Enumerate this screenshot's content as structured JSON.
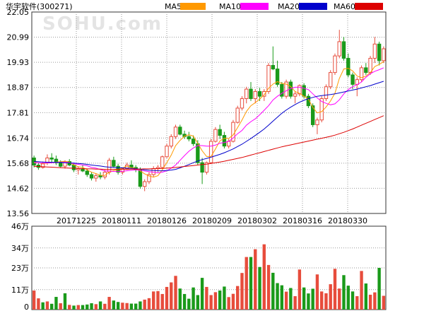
{
  "chart_data": [
    {
      "type": "candlestick",
      "title": "华宇软件(300271)",
      "y_ticks": [
        "22.05",
        "20.99",
        "19.93",
        "18.87",
        "17.81",
        "16.74",
        "15.68",
        "14.62",
        "13.56"
      ],
      "ylim": [
        13.56,
        22.05
      ],
      "x_ticks": [
        "20171225",
        "20180111",
        "20180126",
        "20180209",
        "20180302",
        "20180316",
        "20180330"
      ],
      "grid": true,
      "legend": [
        {
          "name": "MA5",
          "color": "#ff9900"
        },
        {
          "name": "MA10",
          "color": "#ff00ff"
        },
        {
          "name": "MA20",
          "color": "#0000cc"
        },
        {
          "name": "MA60",
          "color": "#dd0000"
        }
      ],
      "up_color": "#e74c3c",
      "down_color": "#1a9a1a",
      "ohlc": [
        [
          15.9,
          16.0,
          15.5,
          15.6
        ],
        [
          15.6,
          15.7,
          15.4,
          15.5
        ],
        [
          15.5,
          15.75,
          15.45,
          15.65
        ],
        [
          15.7,
          16.05,
          15.6,
          15.9
        ],
        [
          15.9,
          16.1,
          15.7,
          15.85
        ],
        [
          15.85,
          16.0,
          15.6,
          15.7
        ],
        [
          15.7,
          15.8,
          15.5,
          15.55
        ],
        [
          15.55,
          15.8,
          15.45,
          15.75
        ],
        [
          15.75,
          15.85,
          15.55,
          15.6
        ],
        [
          15.6,
          15.7,
          15.3,
          15.4
        ],
        [
          15.4,
          15.55,
          15.2,
          15.45
        ],
        [
          15.45,
          15.6,
          15.3,
          15.35
        ],
        [
          15.35,
          15.45,
          15.1,
          15.2
        ],
        [
          15.2,
          15.3,
          14.95,
          15.05
        ],
        [
          15.05,
          15.25,
          14.9,
          15.15
        ],
        [
          15.15,
          15.3,
          15.0,
          15.1
        ],
        [
          15.1,
          15.4,
          15.0,
          15.3
        ],
        [
          15.3,
          15.9,
          15.2,
          15.8
        ],
        [
          15.8,
          15.95,
          15.5,
          15.55
        ],
        [
          15.55,
          15.65,
          15.2,
          15.3
        ],
        [
          15.3,
          15.5,
          15.2,
          15.45
        ],
        [
          15.45,
          15.7,
          15.4,
          15.6
        ],
        [
          15.6,
          15.8,
          15.45,
          15.5
        ],
        [
          15.5,
          15.6,
          15.3,
          15.4
        ],
        [
          15.4,
          15.5,
          14.6,
          14.7
        ],
        [
          14.7,
          15.0,
          14.5,
          14.9
        ],
        [
          14.9,
          15.3,
          14.8,
          15.2
        ],
        [
          15.2,
          15.55,
          15.1,
          15.45
        ],
        [
          15.45,
          15.6,
          15.3,
          15.5
        ],
        [
          15.5,
          16.0,
          15.45,
          15.95
        ],
        [
          15.95,
          16.5,
          15.9,
          16.4
        ],
        [
          16.4,
          16.9,
          16.3,
          16.8
        ],
        [
          16.8,
          17.3,
          16.7,
          17.2
        ],
        [
          17.2,
          17.3,
          16.85,
          16.9
        ],
        [
          16.9,
          17.05,
          16.7,
          16.8
        ],
        [
          16.8,
          17.0,
          16.6,
          16.7
        ],
        [
          16.7,
          16.85,
          16.4,
          16.5
        ],
        [
          16.5,
          16.65,
          15.6,
          15.7
        ],
        [
          15.7,
          15.9,
          14.8,
          15.3
        ],
        [
          15.3,
          15.75,
          15.2,
          15.7
        ],
        [
          15.7,
          16.7,
          15.65,
          16.6
        ],
        [
          16.6,
          17.2,
          16.55,
          17.1
        ],
        [
          17.1,
          17.3,
          16.7,
          16.85
        ],
        [
          16.85,
          17.0,
          16.3,
          16.4
        ],
        [
          16.4,
          16.7,
          16.3,
          16.6
        ],
        [
          16.6,
          17.5,
          16.55,
          17.4
        ],
        [
          17.4,
          18.1,
          17.35,
          18.0
        ],
        [
          18.0,
          18.5,
          17.9,
          18.4
        ],
        [
          18.4,
          18.9,
          18.2,
          18.8
        ],
        [
          18.8,
          19.1,
          18.3,
          18.4
        ],
        [
          18.4,
          18.8,
          18.2,
          18.7
        ],
        [
          18.7,
          18.85,
          18.3,
          18.5
        ],
        [
          18.5,
          18.8,
          18.3,
          18.7
        ],
        [
          18.7,
          19.9,
          18.6,
          19.8
        ],
        [
          19.8,
          20.6,
          19.6,
          19.65
        ],
        [
          19.65,
          20.0,
          18.9,
          19.0
        ],
        [
          19.0,
          19.1,
          18.4,
          18.5
        ],
        [
          18.5,
          19.2,
          18.4,
          19.1
        ],
        [
          19.1,
          19.2,
          18.4,
          18.5
        ],
        [
          18.5,
          18.7,
          18.2,
          18.6
        ],
        [
          18.6,
          19.0,
          18.5,
          18.95
        ],
        [
          18.95,
          19.05,
          18.4,
          18.5
        ],
        [
          18.5,
          18.6,
          18.0,
          18.1
        ],
        [
          18.1,
          18.2,
          17.2,
          17.3
        ],
        [
          17.3,
          17.6,
          16.9,
          17.5
        ],
        [
          17.5,
          18.5,
          17.4,
          18.4
        ],
        [
          18.4,
          19.0,
          18.3,
          18.9
        ],
        [
          18.9,
          19.6,
          18.8,
          19.5
        ],
        [
          19.5,
          20.3,
          19.4,
          20.2
        ],
        [
          20.2,
          21.3,
          20.1,
          20.8
        ],
        [
          20.8,
          21.0,
          20.0,
          20.1
        ],
        [
          20.1,
          20.3,
          19.3,
          19.4
        ],
        [
          19.4,
          19.5,
          18.8,
          19.0
        ],
        [
          19.0,
          19.3,
          18.5,
          19.2
        ],
        [
          19.2,
          19.8,
          19.1,
          19.7
        ],
        [
          19.7,
          19.9,
          19.4,
          19.5
        ],
        [
          19.5,
          20.2,
          19.4,
          20.1
        ],
        [
          20.1,
          21.0,
          19.9,
          20.7
        ],
        [
          20.7,
          20.8,
          19.8,
          20.0
        ],
        [
          20.0,
          20.6,
          19.9,
          20.5
        ]
      ],
      "ma5": [
        15.73,
        15.7,
        15.66,
        15.68,
        15.7,
        15.73,
        15.74,
        15.76,
        15.72,
        15.6,
        15.53,
        15.5,
        15.4,
        15.3,
        15.24,
        15.17,
        15.16,
        15.3,
        15.37,
        15.4,
        15.48,
        15.55,
        15.49,
        15.46,
        15.35,
        15.23,
        15.14,
        15.09,
        15.15,
        15.4,
        15.7,
        16.02,
        16.42,
        16.64,
        16.82,
        16.88,
        16.82,
        16.52,
        16.2,
        15.96,
        15.96,
        16.28,
        16.62,
        16.73,
        16.72,
        16.87,
        17.18,
        17.5,
        17.86,
        18.1,
        18.23,
        18.38,
        18.56,
        18.84,
        19.01,
        19.12,
        19.04,
        19.01,
        18.91,
        18.7,
        18.62,
        18.5,
        18.38,
        18.03,
        17.8,
        17.85,
        18.05,
        18.3,
        18.63,
        19.25,
        19.65,
        19.68,
        19.57,
        19.35,
        19.28,
        19.35,
        19.5,
        19.75,
        19.84,
        19.96
      ],
      "ma10": [
        15.7,
        15.7,
        15.68,
        15.69,
        15.7,
        15.71,
        15.72,
        15.72,
        15.7,
        15.66,
        15.63,
        15.6,
        15.57,
        15.5,
        15.47,
        15.41,
        15.35,
        15.35,
        15.33,
        15.33,
        15.34,
        15.36,
        15.38,
        15.4,
        15.38,
        15.35,
        15.32,
        15.3,
        15.27,
        15.3,
        15.36,
        15.47,
        15.6,
        15.8,
        16.0,
        16.18,
        16.32,
        16.42,
        16.42,
        16.4,
        16.4,
        16.44,
        16.52,
        16.55,
        16.6,
        16.74,
        16.92,
        17.06,
        17.28,
        17.43,
        17.55,
        17.72,
        17.91,
        18.1,
        18.34,
        18.5,
        18.62,
        18.73,
        18.82,
        18.88,
        18.88,
        18.84,
        18.78,
        18.6,
        18.43,
        18.28,
        18.2,
        18.14,
        18.18,
        18.35,
        18.6,
        18.78,
        18.9,
        18.99,
        19.1,
        19.3,
        19.45,
        19.55,
        19.62,
        19.7
      ],
      "ma20": [
        15.75,
        15.74,
        15.73,
        15.72,
        15.72,
        15.71,
        15.71,
        15.7,
        15.69,
        15.68,
        15.67,
        15.65,
        15.63,
        15.6,
        15.58,
        15.56,
        15.53,
        15.51,
        15.5,
        15.49,
        15.48,
        15.47,
        15.46,
        15.45,
        15.43,
        15.4,
        15.38,
        15.37,
        15.36,
        15.36,
        15.37,
        15.39,
        15.42,
        15.48,
        15.55,
        15.62,
        15.7,
        15.77,
        15.83,
        15.88,
        15.93,
        15.99,
        16.05,
        16.12,
        16.2,
        16.28,
        16.38,
        16.48,
        16.6,
        16.72,
        16.85,
        16.98,
        17.12,
        17.28,
        17.45,
        17.62,
        17.78,
        17.92,
        18.04,
        18.15,
        18.25,
        18.33,
        18.4,
        18.45,
        18.5,
        18.53,
        18.55,
        18.57,
        18.6,
        18.64,
        18.68,
        18.72,
        18.76,
        18.8,
        18.85,
        18.9,
        18.95,
        19.01,
        19.07,
        19.13
      ],
      "ma60": [
        15.55,
        15.54,
        15.53,
        15.52,
        15.51,
        15.5,
        15.49,
        15.48,
        15.47,
        15.47,
        15.46,
        15.45,
        15.44,
        15.44,
        15.43,
        15.43,
        15.42,
        15.42,
        15.42,
        15.42,
        15.42,
        15.42,
        15.43,
        15.43,
        15.43,
        15.44,
        15.44,
        15.45,
        15.45,
        15.46,
        15.47,
        15.48,
        15.5,
        15.52,
        15.54,
        15.56,
        15.58,
        15.6,
        15.62,
        15.64,
        15.67,
        15.7,
        15.73,
        15.76,
        15.8,
        15.84,
        15.88,
        15.92,
        15.97,
        16.02,
        16.07,
        16.12,
        16.17,
        16.22,
        16.27,
        16.32,
        16.37,
        16.41,
        16.45,
        16.49,
        16.53,
        16.57,
        16.61,
        16.65,
        16.69,
        16.73,
        16.77,
        16.81,
        16.86,
        16.92,
        16.98,
        17.05,
        17.12,
        17.2,
        17.28,
        17.36,
        17.44,
        17.52,
        17.6,
        17.68
      ]
    },
    {
      "type": "bar",
      "title": "",
      "y_ticks": [
        "46万",
        "34万",
        "23万",
        "11万",
        "0"
      ],
      "ylim": [
        0,
        46
      ],
      "up_color": "#e74c3c",
      "down_color": "#1a9a1a",
      "values": [
        10.5,
        6.2,
        4.0,
        4.5,
        3.2,
        7.0,
        3.5,
        9.0,
        2.6,
        2.2,
        2.5,
        2.5,
        2.8,
        3.5,
        3.0,
        4.5,
        3.2,
        7.0,
        5.0,
        4.2,
        3.8,
        3.6,
        3.3,
        3.3,
        4.5,
        5.5,
        6.3,
        10.0,
        10.2,
        8.6,
        12.5,
        15.0,
        18.6,
        11.6,
        8.6,
        6.0,
        12.2,
        8.0,
        17.5,
        12.5,
        8.0,
        9.6,
        10.5,
        12.7,
        6.9,
        8.7,
        13.0,
        20.2,
        29.0,
        29.0,
        33.3,
        23.5,
        36.0,
        24.6,
        20.3,
        14.6,
        13.4,
        9.9,
        11.9,
        7.4,
        22.1,
        12.2,
        8.9,
        11.5,
        19.4,
        10.0,
        9.0,
        14.0,
        22.5,
        11.6,
        19.0,
        13.2,
        10.0,
        7.4,
        21.3,
        14.4,
        8.2,
        9.5,
        23.0,
        7.6
      ],
      "up": [
        1,
        1,
        0,
        1,
        0,
        0,
        1,
        0,
        1,
        0,
        1,
        0,
        0,
        0,
        1,
        0,
        1,
        1,
        0,
        0,
        1,
        1,
        0,
        0,
        0,
        1,
        1,
        1,
        1,
        1,
        1,
        1,
        1,
        0,
        0,
        0,
        0,
        0,
        0,
        1,
        1,
        1,
        0,
        0,
        1,
        1,
        1,
        1,
        1,
        0,
        1,
        0,
        1,
        1,
        0,
        0,
        0,
        1,
        0,
        1,
        1,
        0,
        0,
        0,
        1,
        1,
        1,
        1,
        1,
        1,
        0,
        0,
        0,
        1,
        1,
        0,
        1,
        1,
        0,
        1
      ]
    }
  ]
}
